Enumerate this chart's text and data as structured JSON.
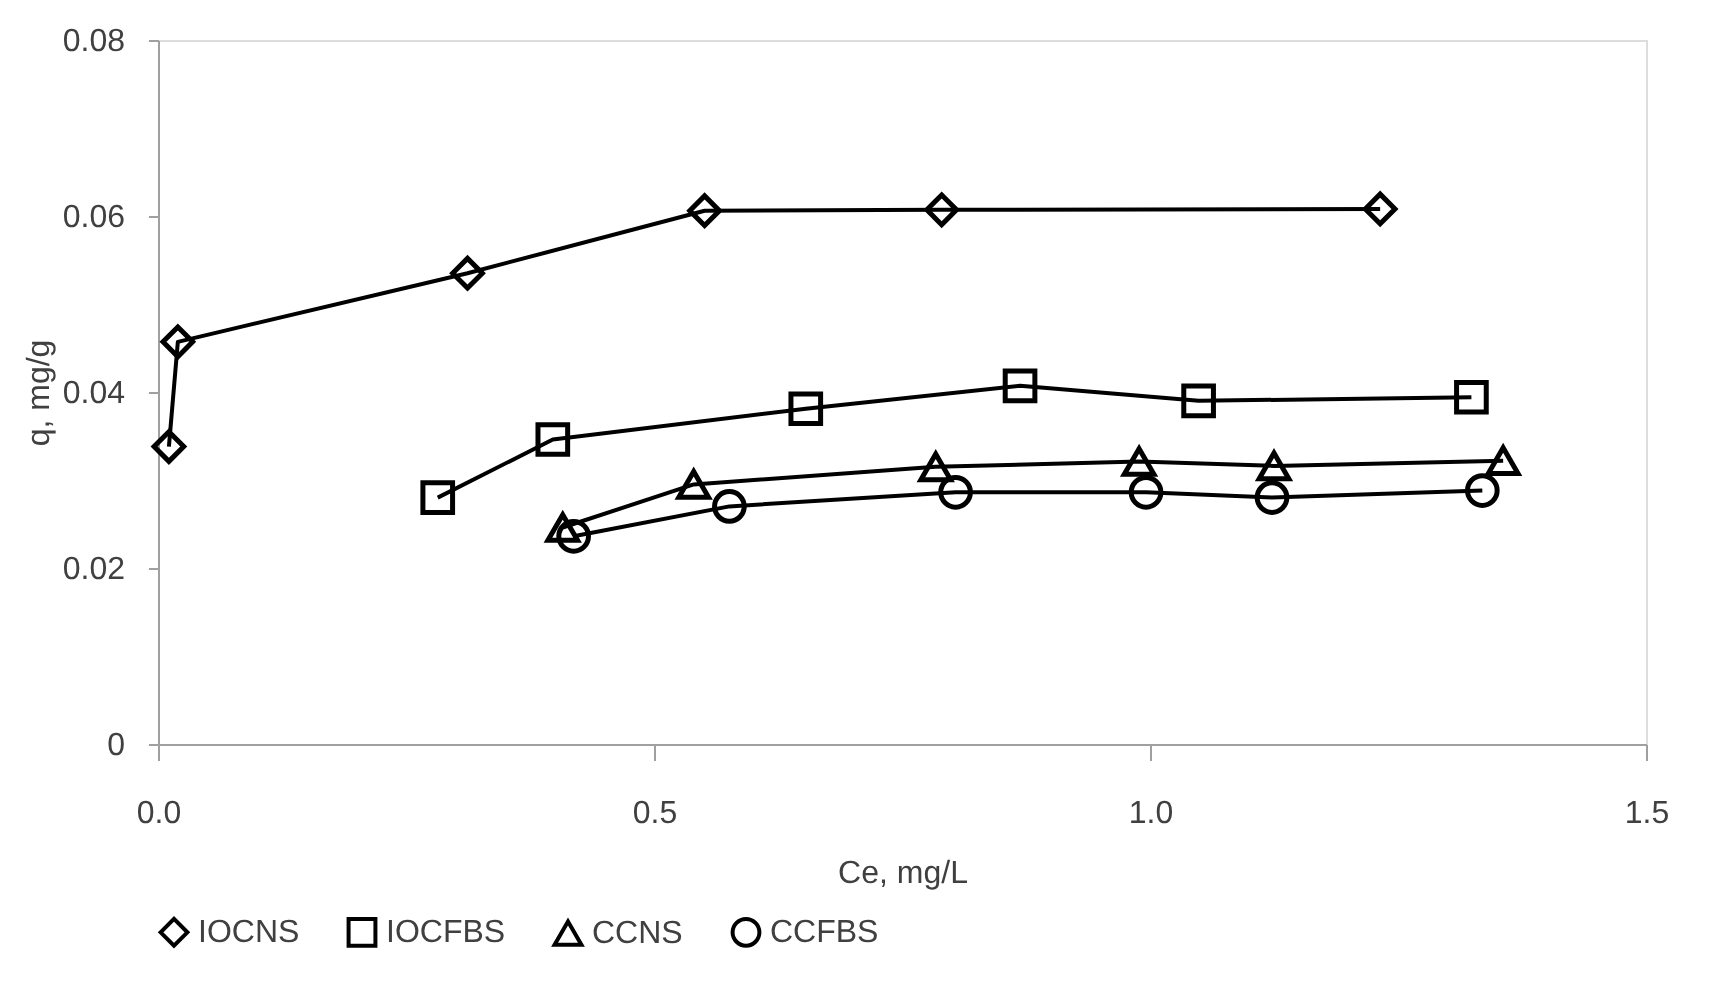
{
  "chart_data": {
    "type": "line",
    "xlabel": "Ce, mg/L",
    "ylabel": "q, mg/g",
    "xlim": [
      0,
      1.5
    ],
    "xticks": [
      {
        "value": 0,
        "label": "0.0"
      },
      {
        "value": 0.5,
        "label": "0.5"
      },
      {
        "value": 1,
        "label": "1.0"
      },
      {
        "value": 1.5,
        "label": "1.5"
      }
    ],
    "ylim": [
      0,
      0.08
    ],
    "yticks": [
      0,
      0.02,
      0.04,
      0.06,
      0.08
    ],
    "grid": false,
    "legend": "bottom",
    "series": [
      {
        "name": "IOCNS",
        "color": "#000000",
        "marker": "diamond",
        "x": [
          0.011,
          0.02,
          0.312,
          0.551,
          0.79,
          1.232
        ],
        "values": [
          0.0338,
          0.0457,
          0.0535,
          0.0606,
          0.0607,
          0.0608
        ]
      },
      {
        "name": "IOCFBS",
        "color": "#000000",
        "marker": "square",
        "x": [
          0.282,
          0.398,
          0.653,
          0.869,
          1.049,
          1.324
        ],
        "values": [
          0.028,
          0.0346,
          0.0381,
          0.0407,
          0.039,
          0.0394
        ]
      },
      {
        "name": "CCNS",
        "color": "#000000",
        "marker": "triangle",
        "x": [
          0.408,
          0.54,
          0.784,
          0.989,
          1.125,
          1.356
        ],
        "values": [
          0.0246,
          0.0295,
          0.0315,
          0.0321,
          0.0316,
          0.0322
        ]
      },
      {
        "name": "CCFBS",
        "color": "#000000",
        "marker": "circle",
        "x": [
          0.419,
          0.576,
          0.804,
          0.996,
          1.123,
          1.335
        ],
        "values": [
          0.0236,
          0.027,
          0.0286,
          0.0286,
          0.028,
          0.0288
        ]
      }
    ]
  }
}
